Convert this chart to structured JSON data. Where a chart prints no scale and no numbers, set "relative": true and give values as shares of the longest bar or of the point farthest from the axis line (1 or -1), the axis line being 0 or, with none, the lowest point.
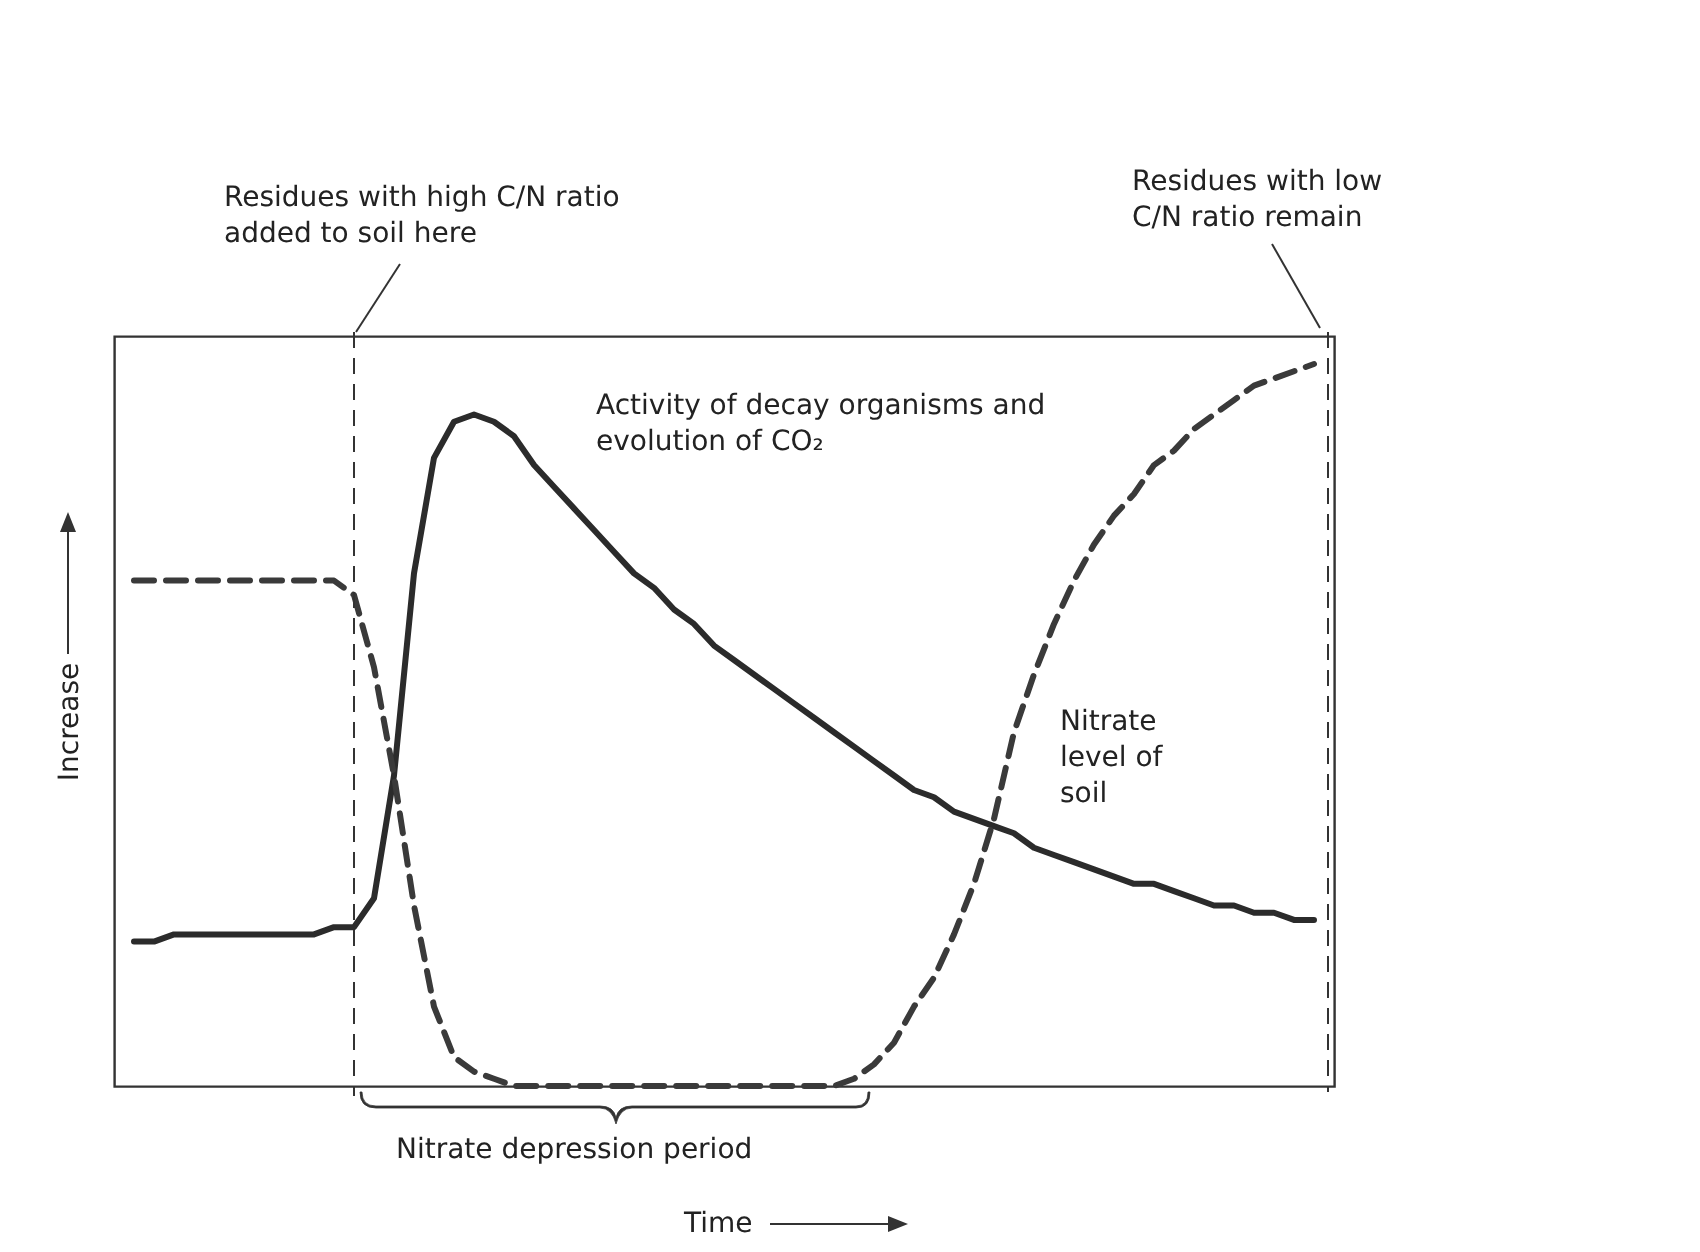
{
  "chart_data": {
    "type": "line",
    "relative": true,
    "xlabel": "Time",
    "ylabel": "Increase",
    "legend": false,
    "marker": "none",
    "categories": [
      null,
      null,
      null,
      null,
      null,
      null,
      null,
      null,
      null,
      null,
      null,
      null,
      null,
      null,
      null,
      null,
      null,
      null,
      null,
      null,
      null,
      null,
      null,
      null,
      null,
      null,
      null,
      null,
      null,
      null,
      null,
      null,
      null,
      null,
      null,
      null,
      null,
      null,
      null,
      null,
      null,
      null,
      null,
      null,
      null,
      null,
      null,
      null,
      null,
      null,
      null,
      null,
      null,
      null,
      null,
      null,
      null,
      null,
      null,
      null
    ],
    "series": [
      {
        "name": "Activity of decay organisms and evolution of CO₂",
        "color": "#2b2b2b",
        "line_style": "solid",
        "values": [
          0.2,
          0.2,
          0.21,
          0.21,
          0.21,
          0.21,
          0.21,
          0.21,
          0.21,
          0.21,
          0.22,
          0.22,
          0.26,
          0.43,
          0.71,
          0.87,
          0.92,
          0.93,
          0.92,
          0.9,
          0.86,
          0.83,
          0.8,
          0.77,
          0.74,
          0.71,
          0.69,
          0.66,
          0.64,
          0.61,
          0.59,
          0.57,
          0.55,
          0.53,
          0.51,
          0.49,
          0.47,
          0.45,
          0.43,
          0.41,
          0.4,
          0.38,
          0.37,
          0.36,
          0.35,
          0.33,
          0.32,
          0.31,
          0.3,
          0.29,
          0.28,
          0.28,
          0.27,
          0.26,
          0.25,
          0.25,
          0.24,
          0.24,
          0.23,
          0.23
        ]
      },
      {
        "name": "Nitrate level of soil",
        "color": "#3a3a3a",
        "line_style": "dashed",
        "values": [
          0.7,
          0.7,
          0.7,
          0.7,
          0.7,
          0.7,
          0.7,
          0.7,
          0.7,
          0.7,
          0.7,
          0.68,
          0.58,
          0.43,
          0.25,
          0.11,
          0.04,
          0.02,
          0.01,
          0,
          0,
          0,
          0,
          0,
          0,
          0,
          0,
          0,
          0,
          0,
          0,
          0,
          0,
          0,
          0,
          0,
          0.01,
          0.03,
          0.06,
          0.11,
          0.15,
          0.21,
          0.28,
          0.37,
          0.49,
          0.57,
          0.64,
          0.7,
          0.75,
          0.79,
          0.82,
          0.86,
          0.88,
          0.91,
          0.93,
          0.95,
          0.97,
          0.98,
          0.99,
          1
        ]
      }
    ],
    "annotations": [
      "Residues with high C/N ratio added to soil here",
      "Residues with low C/N ratio remain",
      "Nitrate depression period"
    ]
  }
}
